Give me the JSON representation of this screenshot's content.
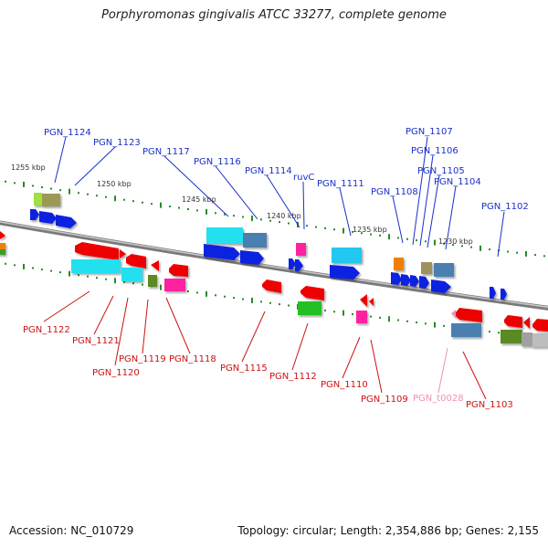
{
  "title": "Porphyromonas gingivalis ATCC 33277, complete genome",
  "footer": {
    "accession": "Accession: NC_010729",
    "topology": "Topology: circular; Length: 2,354,886 bp; Genes: 2,155"
  },
  "colors": {
    "forward_label": "#1a2fc8",
    "reverse_label": "#cc1111",
    "trna_label": "#f090b8",
    "backbone": "#888888",
    "tick": "#2a8a2a"
  },
  "scale_labels": [
    "1255 kbp",
    "1250 kbp",
    "1245 kbp",
    "1240 kbp",
    "1235 kbp",
    "1230 kbp"
  ],
  "forward_genes": [
    "PGN_1124",
    "PGN_1123",
    "PGN_1117",
    "PGN_1116",
    "PGN_1114",
    "ruvC",
    "PGN_1111",
    "PGN_1108",
    "PGN_1107",
    "PGN_1106",
    "PGN_1105",
    "PGN_1104",
    "PGN_1102"
  ],
  "reverse_genes": [
    "PGN_1122",
    "PGN_1121",
    "PGN_1120",
    "PGN_1119",
    "PGN_1118",
    "PGN_1115",
    "PGN_1112",
    "PGN_1110",
    "PGN_1109",
    "PGN_t0028",
    "PGN_1103"
  ]
}
